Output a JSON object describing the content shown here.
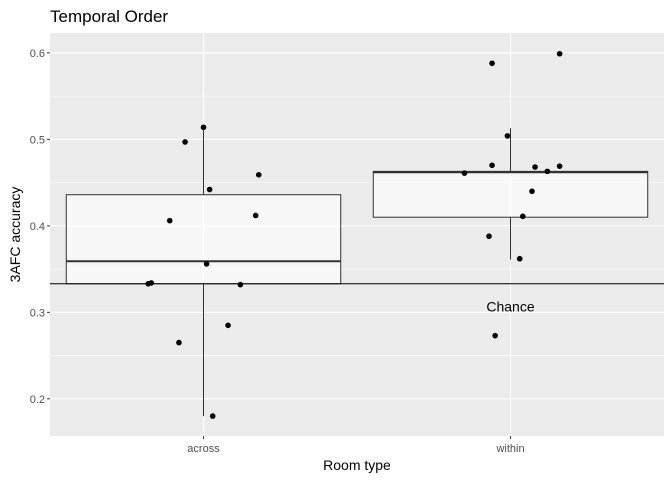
{
  "chart_data": {
    "type": "boxplot",
    "title": "Temporal Order",
    "xlabel": "Room type",
    "ylabel": "3AFC accuracy",
    "categories": [
      "across",
      "within"
    ],
    "ylim": [
      0.157,
      0.623
    ],
    "yticks": [
      0.2,
      0.3,
      0.4,
      0.5,
      0.6
    ],
    "ytick_labels": [
      "0.2",
      "0.3",
      "0.4",
      "0.5",
      "0.6"
    ],
    "grid": true,
    "background": "#ebebeb",
    "gridline_color": "#ffffff",
    "reference_line": {
      "y": 0.333,
      "label": "Chance",
      "label_x": 1.0,
      "label_y": 0.307
    },
    "boxes": [
      {
        "category": "across",
        "whisker_low": 0.18,
        "q1": 0.333,
        "median": 0.359,
        "q3": 0.436,
        "whisker_high": 0.514
      },
      {
        "category": "within",
        "whisker_low": 0.361,
        "q1": 0.41,
        "median": 0.462,
        "q3": 0.463,
        "whisker_high": 0.513
      }
    ],
    "points": [
      {
        "category": "across",
        "jitter": 0.0,
        "y": 0.514
      },
      {
        "category": "across",
        "jitter": -0.06,
        "y": 0.497
      },
      {
        "category": "across",
        "jitter": 0.18,
        "y": 0.459
      },
      {
        "category": "across",
        "jitter": 0.02,
        "y": 0.442
      },
      {
        "category": "across",
        "jitter": 0.17,
        "y": 0.412
      },
      {
        "category": "across",
        "jitter": -0.11,
        "y": 0.406
      },
      {
        "category": "across",
        "jitter": 0.01,
        "y": 0.356
      },
      {
        "category": "across",
        "jitter": -0.18,
        "y": 0.333
      },
      {
        "category": "across",
        "jitter": -0.17,
        "y": 0.334
      },
      {
        "category": "across",
        "jitter": 0.12,
        "y": 0.332
      },
      {
        "category": "across",
        "jitter": 0.08,
        "y": 0.285
      },
      {
        "category": "across",
        "jitter": -0.08,
        "y": 0.265
      },
      {
        "category": "across",
        "jitter": 0.03,
        "y": 0.18
      },
      {
        "category": "within",
        "jitter": 0.16,
        "y": 0.599
      },
      {
        "category": "within",
        "jitter": -0.06,
        "y": 0.588
      },
      {
        "category": "within",
        "jitter": -0.01,
        "y": 0.504
      },
      {
        "category": "within",
        "jitter": -0.06,
        "y": 0.47
      },
      {
        "category": "within",
        "jitter": 0.16,
        "y": 0.469
      },
      {
        "category": "within",
        "jitter": 0.08,
        "y": 0.468
      },
      {
        "category": "within",
        "jitter": 0.12,
        "y": 0.463
      },
      {
        "category": "within",
        "jitter": -0.15,
        "y": 0.461
      },
      {
        "category": "within",
        "jitter": 0.07,
        "y": 0.44
      },
      {
        "category": "within",
        "jitter": 0.04,
        "y": 0.411
      },
      {
        "category": "within",
        "jitter": -0.07,
        "y": 0.388
      },
      {
        "category": "within",
        "jitter": 0.03,
        "y": 0.362
      },
      {
        "category": "within",
        "jitter": -0.05,
        "y": 0.273
      }
    ]
  }
}
